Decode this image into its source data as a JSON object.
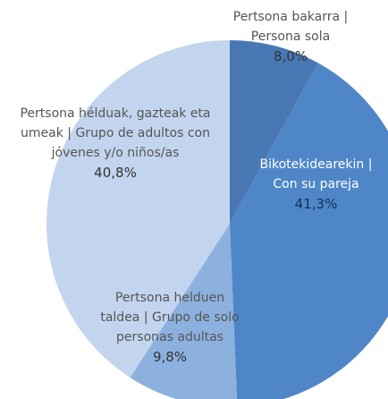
{
  "chart_data": {
    "type": "pie",
    "categories": [
      "Pertsona bakarra | Persona sola",
      "Bikotekidearekin | Con su pareja",
      "Pertsona helduen taldea | Grupo de solo personas adultas",
      "Pertsona hélduak, gazteak eta umeak | Grupo de adultos con jóvenes y/o niños/as"
    ],
    "values": [
      8.0,
      41.3,
      9.8,
      40.8
    ],
    "value_labels": [
      "8,0%",
      "41,3%",
      "9,8%",
      "40,8%"
    ],
    "colors": [
      "#4877b3",
      "#4e86c8",
      "#8cb1df",
      "#c3d5ee"
    ]
  }
}
